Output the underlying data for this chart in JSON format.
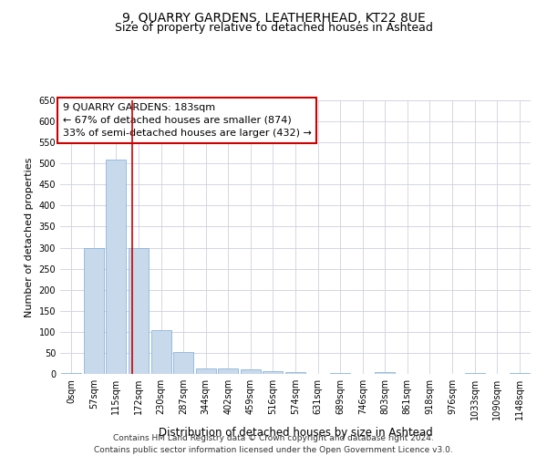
{
  "title": "9, QUARRY GARDENS, LEATHERHEAD, KT22 8UE",
  "subtitle": "Size of property relative to detached houses in Ashtead",
  "xlabel": "Distribution of detached houses by size in Ashtead",
  "ylabel": "Number of detached properties",
  "bin_labels": [
    "0sqm",
    "57sqm",
    "115sqm",
    "172sqm",
    "230sqm",
    "287sqm",
    "344sqm",
    "402sqm",
    "459sqm",
    "516sqm",
    "574sqm",
    "631sqm",
    "689sqm",
    "746sqm",
    "803sqm",
    "861sqm",
    "918sqm",
    "976sqm",
    "1033sqm",
    "1090sqm",
    "1148sqm"
  ],
  "bar_heights": [
    3,
    300,
    510,
    300,
    105,
    52,
    13,
    13,
    11,
    7,
    5,
    0,
    3,
    0,
    4,
    0,
    0,
    0,
    3,
    0,
    3
  ],
  "bar_color": "#c9d9ec",
  "bar_edge_color": "#7aabd4",
  "grid_color": "#d0d0e0",
  "annotation_box_text": "9 QUARRY GARDENS: 183sqm\n← 67% of detached houses are smaller (874)\n33% of semi-detached houses are larger (432) →",
  "vline_x": 2.72,
  "vline_color": "#cc0000",
  "box_edge_color": "#cc0000",
  "ylim": [
    0,
    650
  ],
  "yticks": [
    0,
    50,
    100,
    150,
    200,
    250,
    300,
    350,
    400,
    450,
    500,
    550,
    600,
    650
  ],
  "footnote": "Contains HM Land Registry data © Crown copyright and database right 2024.\nContains public sector information licensed under the Open Government Licence v3.0.",
  "title_fontsize": 10,
  "subtitle_fontsize": 9,
  "annotation_fontsize": 8,
  "xlabel_fontsize": 8.5,
  "ylabel_fontsize": 8,
  "tick_fontsize": 7,
  "footnote_fontsize": 6.5
}
